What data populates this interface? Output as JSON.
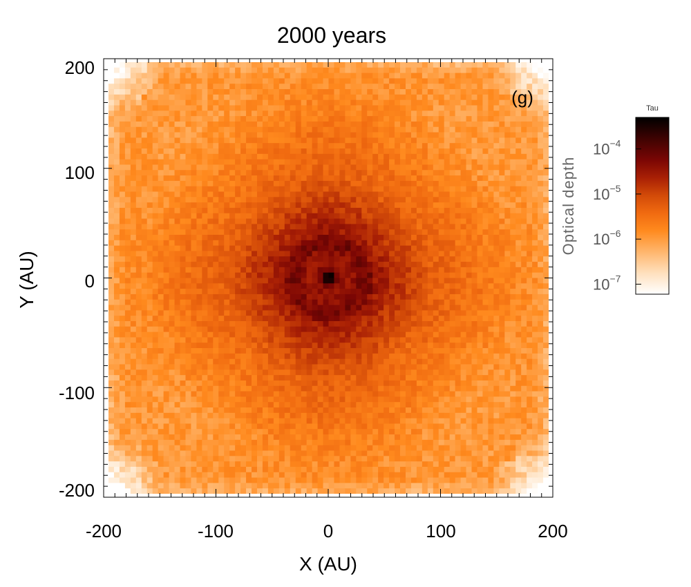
{
  "chart_data": {
    "type": "heatmap",
    "title": "2000 years",
    "panel_label": "(g)",
    "xlabel": "X (AU)",
    "ylabel": "Y (AU)",
    "xlim": [
      -200,
      200
    ],
    "ylim": [
      -200,
      200
    ],
    "x_ticks": [
      -200,
      -100,
      0,
      100,
      200
    ],
    "y_ticks": [
      -200,
      -100,
      0,
      100,
      200
    ],
    "x_tick_labels": [
      "-200",
      "-100",
      "0",
      "100",
      "200"
    ],
    "y_tick_labels": [
      "-200",
      "-100",
      "0",
      "100",
      "200"
    ],
    "grid_cells_per_axis": 80,
    "colormap": [
      "#ffffff",
      "#ffe0bd",
      "#ffb266",
      "#ff8a1e",
      "#f06a10",
      "#d24a08",
      "#a81f05",
      "#7a0604",
      "#3e0302",
      "#000000"
    ],
    "colorbar": {
      "title": "Tau",
      "label": "Optical depth",
      "scale": "log",
      "range": [
        6e-08,
        0.0005
      ],
      "ticks": [
        {
          "value": 1e-07,
          "base": "10",
          "exp": "−7"
        },
        {
          "value": 1e-06,
          "base": "10",
          "exp": "−6"
        },
        {
          "value": 1e-05,
          "base": "10",
          "exp": "−5"
        },
        {
          "value": 0.0001,
          "base": "10",
          "exp": "−4"
        }
      ]
    },
    "field_description_values": {
      "center_peak_tau": 0.0003,
      "inner_ring_tau": 8e-05,
      "mid_disk_tau": 4e-06,
      "outer_background_tau": 1e-06,
      "corner_tau": 1e-07
    }
  }
}
